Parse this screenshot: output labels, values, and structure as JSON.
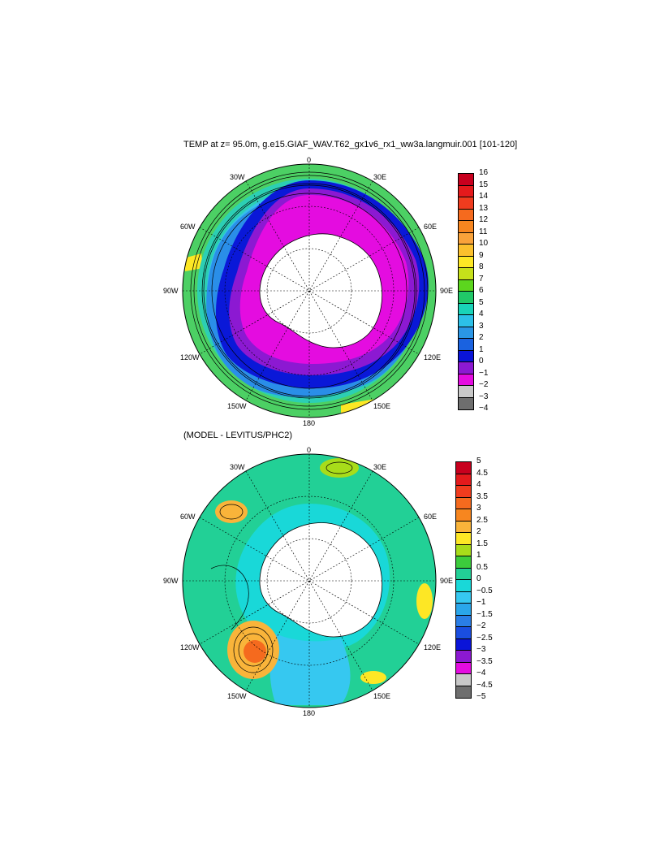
{
  "maps": [
    {
      "title": "TEMP at z=  95.0m, g.e15.GIAF_WAV.T62_gx1v6_rx1_ww3a.langmuir.001 [101-120]",
      "lon_labels": [
        "0",
        "30E",
        "60E",
        "90E",
        "120E",
        "150E",
        "180",
        "150W",
        "120W",
        "90W",
        "60W",
        "30W"
      ],
      "colorbar": {
        "labels": [
          "16",
          "15",
          "14",
          "13",
          "12",
          "11",
          "10",
          "9",
          "8",
          "7",
          "6",
          "5",
          "4",
          "3",
          "2",
          "1",
          "0",
          "−1",
          "−2",
          "−3",
          "−4"
        ],
        "colors": [
          "#c8001e",
          "#e41a1c",
          "#f03c1e",
          "#f56a1e",
          "#f7861f",
          "#f9a23a",
          "#fbc02d",
          "#fde725",
          "#c6e01a",
          "#5cd61e",
          "#20c868",
          "#19d3b8",
          "#2cc0e8",
          "#2a96e6",
          "#1a62e0",
          "#0a14d8",
          "#8c19d2",
          "#e40ce0",
          "#c8c8c8",
          "#6e6e6e"
        ]
      }
    },
    {
      "title": "(MODEL - LEVITUS/PHC2)",
      "lon_labels": [
        "0",
        "30E",
        "60E",
        "90E",
        "120E",
        "150E",
        "180",
        "150W",
        "120W",
        "90W",
        "60W",
        "30W"
      ],
      "colorbar": {
        "labels": [
          "5",
          "4.5",
          "4",
          "3.5",
          "3",
          "2.5",
          "2",
          "1.5",
          "1",
          "0.5",
          "0",
          "−0.5",
          "−1",
          "−1.5",
          "−2",
          "−2.5",
          "−3",
          "−3.5",
          "−4",
          "−4.5",
          "−5"
        ],
        "colors": [
          "#c8001e",
          "#e41a1c",
          "#f03c1e",
          "#f56a1e",
          "#f7861f",
          "#f9b43a",
          "#fde725",
          "#a8dc1a",
          "#3ccc3c",
          "#22d096",
          "#19d8d8",
          "#36c8f0",
          "#2aa6ea",
          "#2a7ee6",
          "#1a4ee0",
          "#0a14d8",
          "#8c19d2",
          "#e40ce0",
          "#c8c8c8",
          "#6e6e6e"
        ]
      }
    }
  ]
}
